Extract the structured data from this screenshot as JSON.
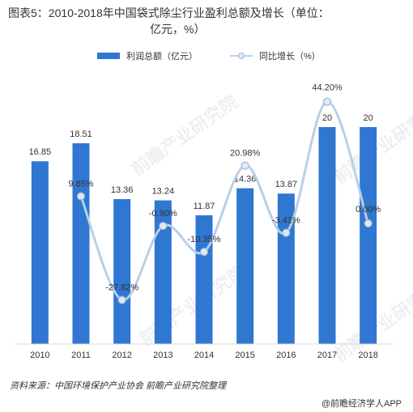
{
  "title_line1": "图表5：2010-2018年中国袋式除尘行业盈利总额及增长（单位：",
  "title_line2": "亿元，%）",
  "legend": {
    "bar_label": "利润总额（亿元）",
    "line_label": "同比增长（%）"
  },
  "footer": {
    "source": "资料来源：中国环境保护产业协会 前瞻产业研究院整理",
    "brand": "@前瞻经济学人APP"
  },
  "watermark_text": "前瞻产业研究院",
  "colors": {
    "bar": "#2f77d1",
    "line": "#b9cfe8",
    "marker_fill": "#dfe8f3",
    "marker_stroke": "#9bb6d6"
  },
  "chart_data": {
    "type": "bar",
    "categories": [
      "2010",
      "2011",
      "2012",
      "2013",
      "2014",
      "2015",
      "2016",
      "2017",
      "2018"
    ],
    "series": [
      {
        "name": "利润总额（亿元）",
        "type": "bar",
        "values": [
          16.85,
          18.51,
          13.36,
          13.24,
          11.87,
          14.36,
          13.87,
          20,
          20
        ],
        "labels": [
          "16.85",
          "18.51",
          "13.36",
          "13.24",
          "11.87",
          "14.36",
          "13.87",
          "20",
          "20"
        ]
      },
      {
        "name": "同比增长（%）",
        "type": "line",
        "smooth": true,
        "values": [
          null,
          9.85,
          -27.82,
          -0.9,
          -10.35,
          20.98,
          -3.41,
          44.2,
          0.0
        ],
        "labels": [
          "",
          "9.85%",
          "-27.82%",
          "-0.90%",
          "-10.35%",
          "20.98%",
          "-3.41%",
          "44.20%",
          "0.00%"
        ]
      }
    ],
    "ylim_bar": [
      0,
      25
    ],
    "ylim_line": [
      -30,
      50
    ],
    "grid": false,
    "legend_position": "top-center"
  }
}
